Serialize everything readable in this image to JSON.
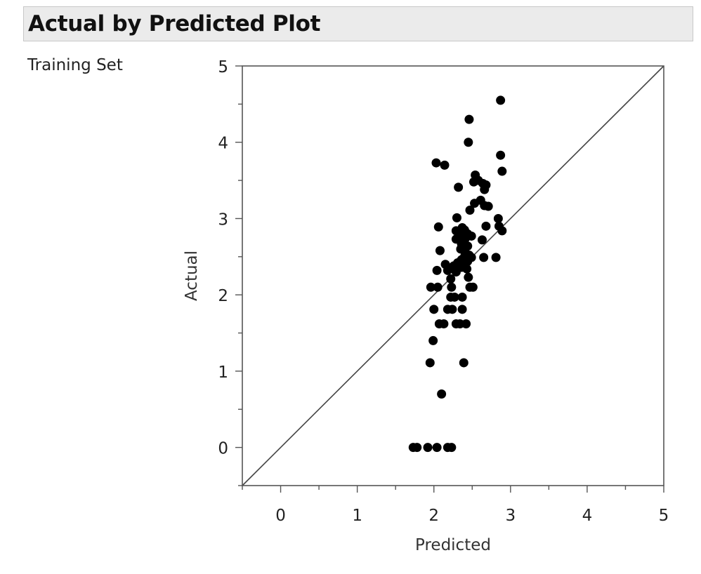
{
  "header": {
    "title": "Actual by Predicted Plot"
  },
  "set_label": "Training Set",
  "chart_data": {
    "type": "scatter",
    "xlabel": "Predicted",
    "ylabel": "Actual",
    "xlim": [
      -0.5,
      5
    ],
    "ylim": [
      -0.5,
      5
    ],
    "x_ticks": [
      0,
      1,
      2,
      3,
      4,
      5
    ],
    "y_ticks": [
      0,
      1,
      2,
      3,
      4,
      5
    ],
    "reference_line": "y = x",
    "grid": false,
    "marker_color": "#000000",
    "points": [
      {
        "x": 2.87,
        "y": 4.55
      },
      {
        "x": 2.46,
        "y": 4.3
      },
      {
        "x": 2.45,
        "y": 4.0
      },
      {
        "x": 2.87,
        "y": 3.83
      },
      {
        "x": 2.03,
        "y": 3.73
      },
      {
        "x": 2.14,
        "y": 3.7
      },
      {
        "x": 2.89,
        "y": 3.62
      },
      {
        "x": 2.54,
        "y": 3.57
      },
      {
        "x": 2.58,
        "y": 3.5
      },
      {
        "x": 2.52,
        "y": 3.48
      },
      {
        "x": 2.64,
        "y": 3.46
      },
      {
        "x": 2.68,
        "y": 3.44
      },
      {
        "x": 2.32,
        "y": 3.41
      },
      {
        "x": 2.66,
        "y": 3.38
      },
      {
        "x": 2.61,
        "y": 3.24
      },
      {
        "x": 2.53,
        "y": 3.2
      },
      {
        "x": 2.66,
        "y": 3.17
      },
      {
        "x": 2.71,
        "y": 3.16
      },
      {
        "x": 2.47,
        "y": 3.11
      },
      {
        "x": 2.3,
        "y": 3.01
      },
      {
        "x": 2.84,
        "y": 3.0
      },
      {
        "x": 2.06,
        "y": 2.89
      },
      {
        "x": 2.37,
        "y": 2.88
      },
      {
        "x": 2.68,
        "y": 2.9
      },
      {
        "x": 2.85,
        "y": 2.9
      },
      {
        "x": 2.4,
        "y": 2.85
      },
      {
        "x": 2.29,
        "y": 2.84
      },
      {
        "x": 2.89,
        "y": 2.84
      },
      {
        "x": 2.44,
        "y": 2.8
      },
      {
        "x": 2.33,
        "y": 2.77
      },
      {
        "x": 2.49,
        "y": 2.77
      },
      {
        "x": 2.41,
        "y": 2.74
      },
      {
        "x": 2.29,
        "y": 2.73
      },
      {
        "x": 2.63,
        "y": 2.72
      },
      {
        "x": 2.36,
        "y": 2.67
      },
      {
        "x": 2.44,
        "y": 2.64
      },
      {
        "x": 2.35,
        "y": 2.6
      },
      {
        "x": 2.08,
        "y": 2.58
      },
      {
        "x": 2.41,
        "y": 2.55
      },
      {
        "x": 2.46,
        "y": 2.52
      },
      {
        "x": 2.4,
        "y": 2.5
      },
      {
        "x": 2.49,
        "y": 2.49
      },
      {
        "x": 2.65,
        "y": 2.49
      },
      {
        "x": 2.81,
        "y": 2.49
      },
      {
        "x": 2.36,
        "y": 2.46
      },
      {
        "x": 2.44,
        "y": 2.44
      },
      {
        "x": 2.31,
        "y": 2.42
      },
      {
        "x": 2.4,
        "y": 2.4
      },
      {
        "x": 2.15,
        "y": 2.4
      },
      {
        "x": 2.26,
        "y": 2.38
      },
      {
        "x": 2.36,
        "y": 2.36
      },
      {
        "x": 2.43,
        "y": 2.34
      },
      {
        "x": 2.04,
        "y": 2.32
      },
      {
        "x": 2.18,
        "y": 2.32
      },
      {
        "x": 2.29,
        "y": 2.3
      },
      {
        "x": 2.45,
        "y": 2.23
      },
      {
        "x": 2.22,
        "y": 2.21
      },
      {
        "x": 1.96,
        "y": 2.1
      },
      {
        "x": 2.05,
        "y": 2.1
      },
      {
        "x": 2.23,
        "y": 2.1
      },
      {
        "x": 2.47,
        "y": 2.1
      },
      {
        "x": 2.51,
        "y": 2.1
      },
      {
        "x": 2.22,
        "y": 1.97
      },
      {
        "x": 2.27,
        "y": 1.97
      },
      {
        "x": 2.37,
        "y": 1.97
      },
      {
        "x": 2.0,
        "y": 1.81
      },
      {
        "x": 2.18,
        "y": 1.81
      },
      {
        "x": 2.24,
        "y": 1.81
      },
      {
        "x": 2.37,
        "y": 1.81
      },
      {
        "x": 2.07,
        "y": 1.62
      },
      {
        "x": 2.13,
        "y": 1.62
      },
      {
        "x": 2.29,
        "y": 1.62
      },
      {
        "x": 2.34,
        "y": 1.62
      },
      {
        "x": 2.42,
        "y": 1.62
      },
      {
        "x": 1.99,
        "y": 1.4
      },
      {
        "x": 1.95,
        "y": 1.11
      },
      {
        "x": 2.39,
        "y": 1.11
      },
      {
        "x": 2.1,
        "y": 0.7
      },
      {
        "x": 1.73,
        "y": 0.0
      },
      {
        "x": 1.78,
        "y": 0.0
      },
      {
        "x": 1.92,
        "y": 0.0
      },
      {
        "x": 2.04,
        "y": 0.0
      },
      {
        "x": 2.18,
        "y": 0.0
      },
      {
        "x": 2.23,
        "y": 0.0
      }
    ]
  }
}
